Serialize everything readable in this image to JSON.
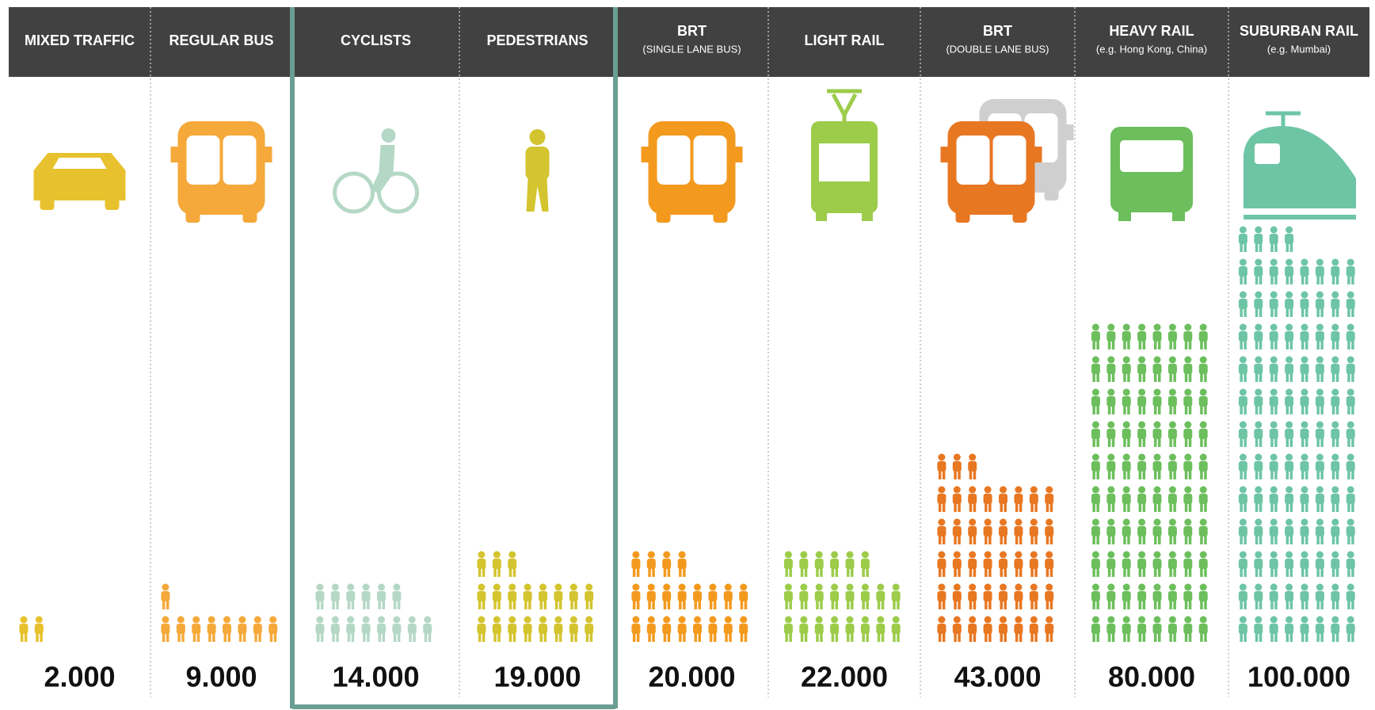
{
  "chart_data": {
    "type": "pictogram",
    "categories": [
      "MIXED TRAFFIC",
      "REGULAR BUS",
      "CYCLISTS",
      "PEDESTRIANS",
      "BRT",
      "LIGHT RAIL",
      "BRT",
      "HEAVY RAIL",
      "SUBURBAN RAIL"
    ],
    "category_notes": [
      null,
      null,
      null,
      null,
      "(SINGLE LANE BUS)",
      null,
      "(DOUBLE LANE BUS)",
      "(e.g. Hong Kong, China)",
      "(e.g. Mumbai)"
    ],
    "values": [
      2000,
      9000,
      14000,
      19000,
      20000,
      22000,
      43000,
      80000,
      100000
    ],
    "value_labels": [
      "2.000",
      "9.000",
      "14.000",
      "19.000",
      "20.000",
      "22.000",
      "43.000",
      "80.000",
      "100.000"
    ],
    "colors": [
      "#e8c22e",
      "#f5a93a",
      "#b5d8c6",
      "#d4c42f",
      "#f39a1e",
      "#9ccc4a",
      "#e87722",
      "#6cbf5c",
      "#6dc5a5"
    ]
  }
}
